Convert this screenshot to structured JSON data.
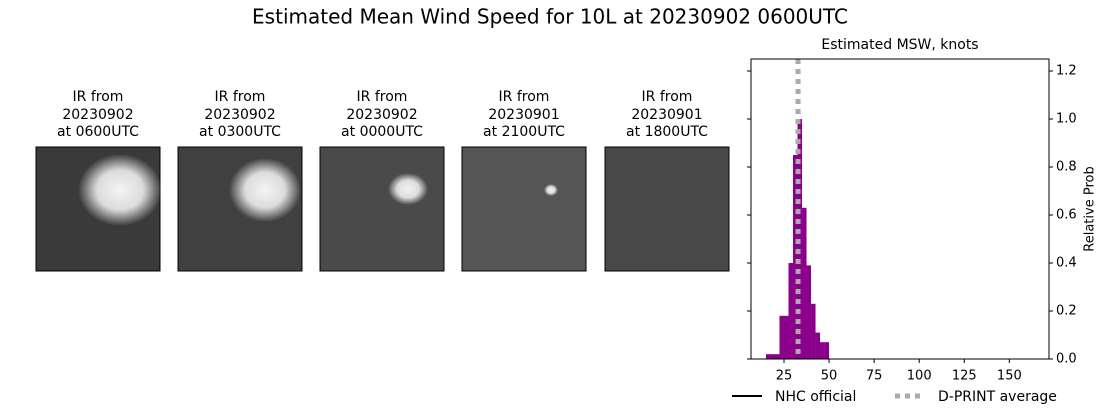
{
  "title": "Estimated Mean Wind Speed for 10L at 20230902 0600UTC",
  "panels": [
    {
      "title": "IR from\n20230902\nat 0600UTC"
    },
    {
      "title": "IR from\n20230902\nat 0300UTC"
    },
    {
      "title": "IR from\n20230902\nat 0000UTC"
    },
    {
      "title": "IR from\n20230901\nat 2100UTC"
    },
    {
      "title": "IR from\n20230901\nat 1800UTC"
    }
  ],
  "chart_data": {
    "type": "histogram",
    "title": "Estimated MSW, knots",
    "y_label": "Relative Prob",
    "bins": [
      15,
      17.5,
      20,
      22.5,
      25,
      27.5,
      30,
      32.5,
      35,
      37.5,
      40,
      42.5,
      45,
      47.5,
      50
    ],
    "values": [
      0.02,
      0.02,
      0.02,
      0.18,
      0.18,
      0.4,
      0.85,
      1.0,
      0.63,
      0.39,
      0.23,
      0.11,
      0.07,
      0.07
    ],
    "color": "#8b008b",
    "xlim": [
      6.7,
      172
    ],
    "xticks": [
      25,
      50,
      75,
      100,
      125,
      150
    ],
    "ylim": [
      0,
      1.25
    ],
    "yticks": [
      {
        "value": 0,
        "label": "0.0"
      },
      {
        "value": 0.2,
        "label": "0.2"
      },
      {
        "value": 0.4,
        "label": "0.4"
      },
      {
        "value": 0.6,
        "label": "0.6"
      },
      {
        "value": 0.8,
        "label": "0.8"
      },
      {
        "value": 1.0,
        "label": "1.0"
      },
      {
        "value": 1.2,
        "label": "1.2"
      }
    ],
    "lines": [
      {
        "name": "NHC official",
        "color": "#000000",
        "style": "solid",
        "x": null
      },
      {
        "name": "D-PRINT average",
        "color": "#aaaaaa",
        "style": "dotted",
        "x": 32.8
      }
    ]
  }
}
